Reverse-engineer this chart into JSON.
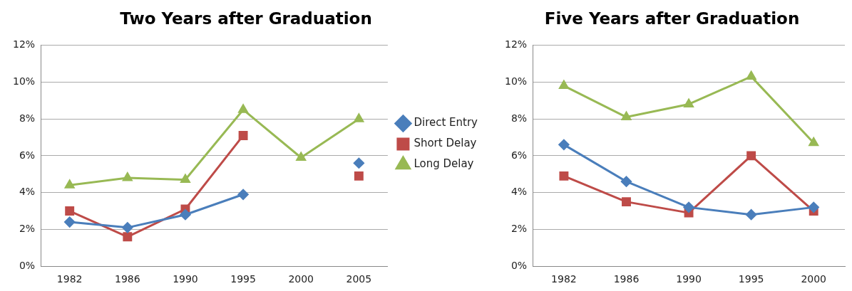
{
  "chart_data": [
    {
      "type": "line",
      "title": "Two Years after Graduation",
      "categories": [
        "1982",
        "1986",
        "1990",
        "1995",
        "2000",
        "2005"
      ],
      "series": [
        {
          "name": "Direct Entry",
          "color": "#4a7ebb",
          "marker": "diamond",
          "values": [
            2.4,
            2.1,
            2.8,
            3.9,
            null,
            5.6
          ]
        },
        {
          "name": "Short Delay",
          "color": "#be4b48",
          "marker": "square",
          "values": [
            3.0,
            1.6,
            3.1,
            7.1,
            null,
            4.9
          ]
        },
        {
          "name": "Long Delay",
          "color": "#98b954",
          "marker": "triangle",
          "values": [
            4.4,
            4.8,
            4.7,
            8.5,
            5.9,
            8.0
          ]
        }
      ],
      "ylim": [
        0,
        12
      ],
      "yticks": [
        {
          "value": 0,
          "label": "0%"
        },
        {
          "value": 2,
          "label": "2%"
        },
        {
          "value": 4,
          "label": "4%"
        },
        {
          "value": 6,
          "label": "6%"
        },
        {
          "value": 8,
          "label": "8%"
        },
        {
          "value": 10,
          "label": "10%"
        },
        {
          "value": 12,
          "label": "12%"
        }
      ],
      "grid": "y",
      "legend": "right"
    },
    {
      "type": "line",
      "title": "Five Years after Graduation",
      "categories": [
        "1982",
        "1986",
        "1990",
        "1995",
        "2000"
      ],
      "series": [
        {
          "color": "#4a7ebb",
          "marker": "diamond",
          "values": [
            6.6,
            4.6,
            3.2,
            2.8,
            3.2
          ]
        },
        {
          "color": "#be4b48",
          "marker": "square",
          "values": [
            4.9,
            3.5,
            2.9,
            6.0,
            3.0
          ]
        },
        {
          "color": "#98b954",
          "marker": "triangle",
          "values": [
            9.8,
            8.1,
            8.8,
            10.3,
            6.7
          ]
        }
      ],
      "ylim": [
        0,
        12
      ],
      "yticks": [
        {
          "value": 0,
          "label": "0%"
        },
        {
          "value": 2,
          "label": "2%"
        },
        {
          "value": 4,
          "label": "4%"
        },
        {
          "value": 6,
          "label": "6%"
        },
        {
          "value": 8,
          "label": "8%"
        },
        {
          "value": 10,
          "label": "10%"
        },
        {
          "value": 12,
          "label": "12%"
        }
      ],
      "grid": "y"
    }
  ]
}
